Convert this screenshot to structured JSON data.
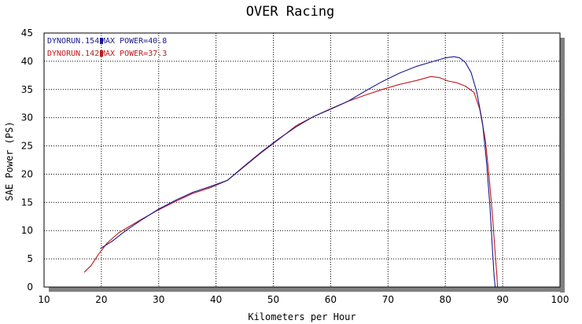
{
  "chart_data": {
    "type": "line",
    "title": "OVER Racing",
    "xlabel": "Kilometers per Hour",
    "ylabel": "SAE Power (PS)",
    "xlim": [
      10,
      100
    ],
    "ylim": [
      0,
      45
    ],
    "xticks": [
      10,
      20,
      30,
      40,
      50,
      60,
      70,
      80,
      90,
      100
    ],
    "yticks": [
      0,
      5,
      10,
      15,
      20,
      25,
      30,
      35,
      40,
      45
    ],
    "grid": true,
    "legend_position": "top-left",
    "series": [
      {
        "name": "DYNORUN.154",
        "max_label": "MAX POWER=40.8",
        "color": "#1a1a8c",
        "x": [
          19.8,
          22,
          24,
          27,
          30,
          33,
          36,
          39,
          42,
          45,
          48,
          51,
          54,
          57,
          60,
          63,
          66,
          69,
          72,
          75,
          78,
          80,
          81.5,
          82.5,
          83.5,
          84.5,
          85.5,
          86.5,
          87.2,
          87.8,
          88.2,
          88.5,
          88.7
        ],
        "y": [
          6.8,
          8.2,
          9.8,
          11.9,
          13.8,
          15.4,
          16.8,
          17.8,
          18.9,
          21.5,
          24.0,
          26.3,
          28.4,
          30.2,
          31.5,
          32.9,
          34.7,
          36.4,
          37.9,
          39.1,
          40.0,
          40.6,
          40.8,
          40.6,
          39.8,
          38.0,
          34.5,
          29.0,
          22.0,
          14.0,
          7.0,
          2.0,
          0.0
        ]
      },
      {
        "name": "DYNORUN.142",
        "max_label": "MAX POWER=37.3",
        "color": "#c0191c",
        "x": [
          17.0,
          18.2,
          19.5,
          21,
          23,
          25,
          27,
          30,
          33,
          36,
          39,
          42,
          45,
          48,
          51,
          54,
          57,
          60,
          63,
          66,
          69,
          72,
          75,
          77.5,
          79,
          80.5,
          82,
          83.5,
          85,
          86,
          87,
          87.6,
          88.2,
          88.7,
          89.0,
          89.1
        ],
        "y": [
          2.6,
          3.8,
          5.8,
          7.8,
          9.6,
          10.8,
          12.0,
          13.7,
          15.2,
          16.6,
          17.6,
          18.9,
          21.4,
          23.9,
          26.2,
          28.6,
          30.2,
          31.6,
          32.9,
          34.0,
          35.0,
          35.9,
          36.6,
          37.3,
          37.1,
          36.5,
          36.2,
          35.6,
          34.5,
          31.5,
          26.0,
          20.0,
          13.0,
          6.0,
          2.0,
          0.0
        ]
      }
    ]
  }
}
